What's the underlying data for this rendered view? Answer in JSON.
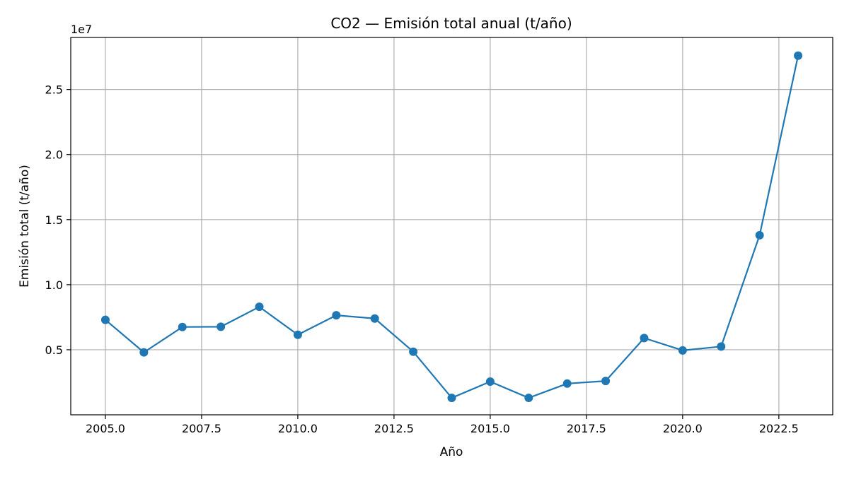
{
  "chart_data": {
    "type": "line",
    "title": "CO2 — Emisión total anual (t/año)",
    "xlabel": "Año",
    "ylabel": "Emisión total (t/año)",
    "y_offset_label": "1e7",
    "xlim": [
      2004.1,
      2023.9
    ],
    "ylim": [
      0.0,
      2.9
    ],
    "grid": true,
    "xticks": [
      2005.0,
      2007.5,
      2010.0,
      2012.5,
      2015.0,
      2017.5,
      2020.0,
      2022.5
    ],
    "xtick_labels": [
      "2005.0",
      "2007.5",
      "2010.0",
      "2012.5",
      "2015.0",
      "2017.5",
      "2020.0",
      "2022.5"
    ],
    "yticks": [
      0.5,
      1.0,
      1.5,
      2.0,
      2.5
    ],
    "ytick_labels": [
      "0.5",
      "1.0",
      "1.5",
      "2.0",
      "2.5"
    ],
    "series": [
      {
        "color": "#1f77b4",
        "marker": "circle",
        "x": [
          2005,
          2006,
          2007,
          2008,
          2009,
          2010,
          2011,
          2012,
          2013,
          2014,
          2015,
          2016,
          2017,
          2018,
          2019,
          2020,
          2021,
          2022,
          2023
        ],
        "values": [
          0.73,
          0.48,
          0.675,
          0.677,
          0.83,
          0.615,
          0.765,
          0.74,
          0.485,
          0.13,
          0.255,
          0.13,
          0.24,
          0.26,
          0.59,
          0.495,
          0.525,
          1.38,
          2.76
        ]
      }
    ]
  }
}
